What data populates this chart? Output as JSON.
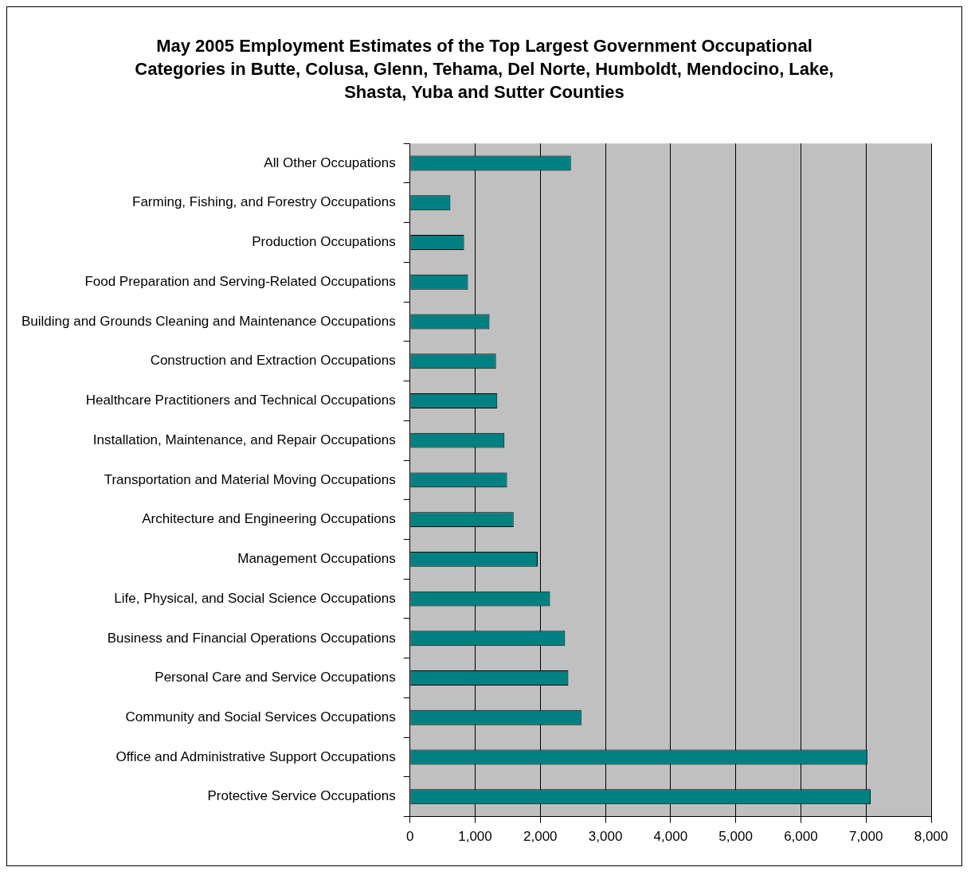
{
  "chart_data": {
    "type": "bar",
    "orientation": "horizontal",
    "title": "May 2005 Employment Estimates of the Top Largest Government Occupational Categories in Butte, Colusa, Glenn, Tehama, Del Norte, Humboldt, Mendocino, Lake, Shasta, Yuba and Sutter Counties",
    "categories": [
      "All Other Occupations",
      "Farming, Fishing, and Forestry Occupations",
      "Production Occupations",
      "Food Preparation and Serving-Related Occupations",
      "Building and Grounds Cleaning and Maintenance Occupations",
      "Construction and Extraction Occupations",
      "Healthcare Practitioners and Technical Occupations",
      "Installation, Maintenance, and Repair Occupations",
      "Transportation and Material Moving Occupations",
      "Architecture and Engineering Occupations",
      "Management Occupations",
      "Life, Physical, and Social Science Occupations",
      "Business and Financial Operations Occupations",
      "Personal Care and Service Occupations",
      "Community and Social Services Occupations",
      "Office and Administrative Support Occupations",
      "Protective Service Occupations"
    ],
    "values": [
      2470,
      620,
      830,
      890,
      1220,
      1320,
      1340,
      1450,
      1490,
      1590,
      1960,
      2150,
      2380,
      2430,
      2630,
      7020,
      7070
    ],
    "color": "#008080",
    "xlim": [
      0,
      8000
    ],
    "xticks": [
      {
        "value": 0,
        "label": "0"
      },
      {
        "value": 1000,
        "label": "1,000"
      },
      {
        "value": 2000,
        "label": "2,000"
      },
      {
        "value": 3000,
        "label": "3,000"
      },
      {
        "value": 4000,
        "label": "4,000"
      },
      {
        "value": 5000,
        "label": "5,000"
      },
      {
        "value": 6000,
        "label": "6,000"
      },
      {
        "value": 7000,
        "label": "7,000"
      },
      {
        "value": 8000,
        "label": "8,000"
      }
    ],
    "grid": "x"
  }
}
